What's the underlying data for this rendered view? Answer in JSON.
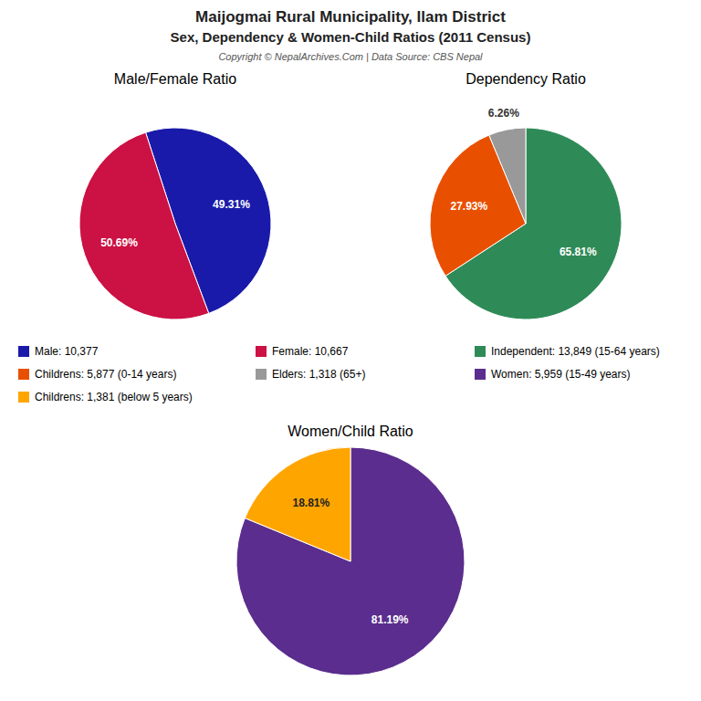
{
  "title": "Maijogmai Rural Municipality, Ilam District",
  "subtitle": "Sex, Dependency & Women-Child Ratios (2011 Census)",
  "annotations": [
    "Copyright © NepalArchives.Com | Data Source: CBS Nepal"
  ],
  "chart_data": [
    {
      "type": "pie",
      "title": "Male/Female Ratio",
      "categories": [
        "Male: 10,377",
        "Female: 10,667"
      ],
      "values": [
        49.31,
        50.69
      ],
      "value_labels": [
        "49.31%",
        "50.69%"
      ],
      "colors": [
        "#1a1aaa",
        "#cc1144"
      ],
      "data_labels": true,
      "legend": "bottom"
    },
    {
      "type": "pie",
      "title": "Dependency Ratio",
      "categories": [
        "Independent: 13,849 (15-64 years)",
        "Childrens: 5,877 (0-14 years)",
        "Elders: 1,318 (65+)"
      ],
      "values": [
        65.81,
        27.93,
        6.26
      ],
      "value_labels": [
        "65.81%",
        "27.93%",
        "6.26%"
      ],
      "colors": [
        "#2e8b57",
        "#e85000",
        "#999999"
      ],
      "data_labels": true,
      "legend": "bottom"
    },
    {
      "type": "pie",
      "title": "Women/Child Ratio",
      "categories": [
        "Women: 5,959 (15-49 years)",
        "Childrens: 1,381 (below 5 years)"
      ],
      "values": [
        81.19,
        18.81
      ],
      "value_labels": [
        "81.19%",
        "18.81%"
      ],
      "colors": [
        "#5b2d8e",
        "#ffa500"
      ],
      "data_labels": true,
      "legend": "top"
    }
  ]
}
